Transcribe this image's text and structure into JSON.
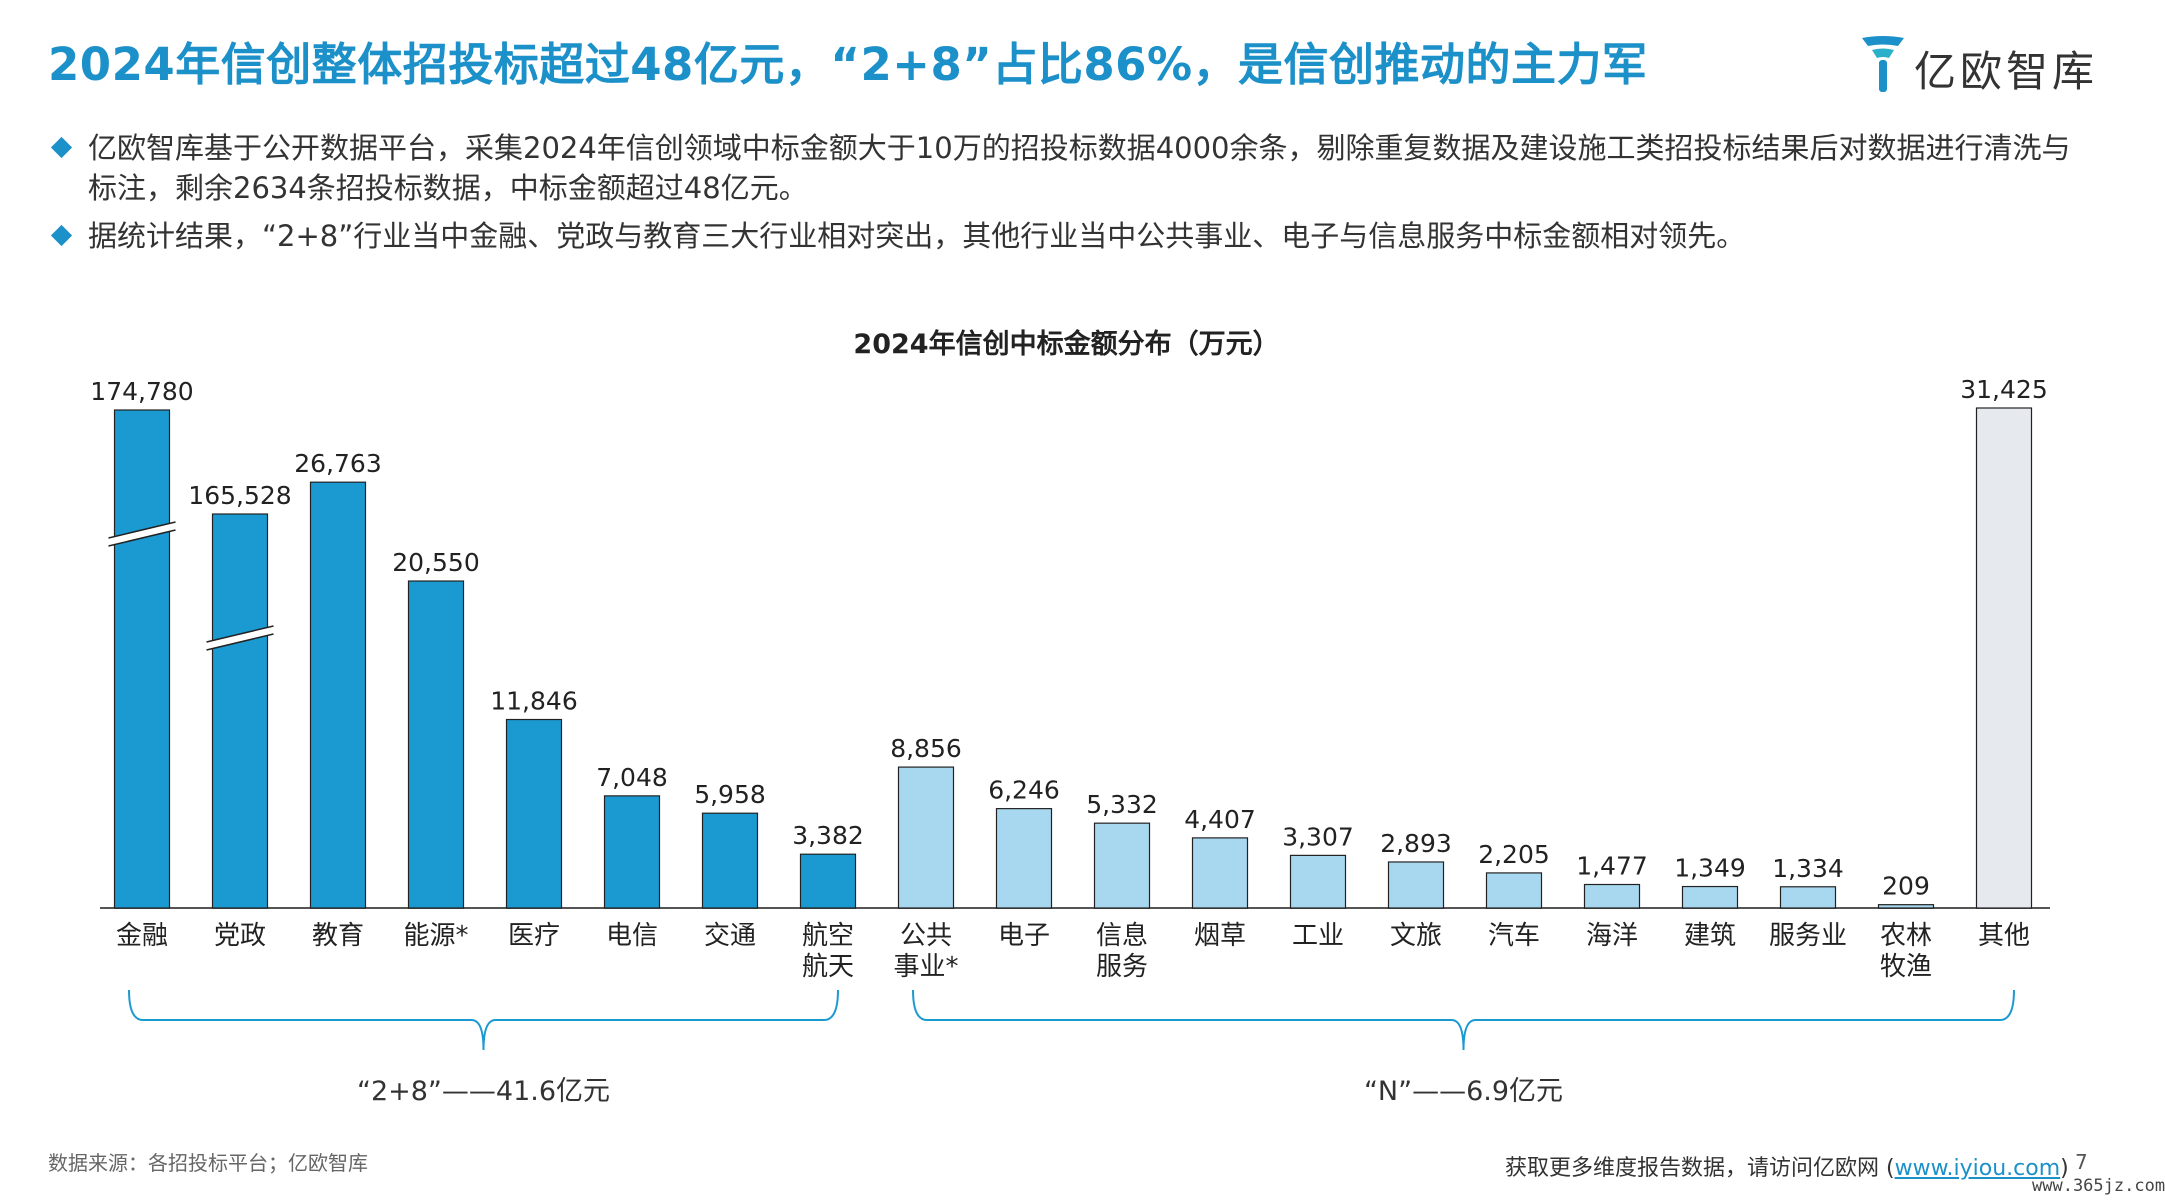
{
  "title": "2024年信创整体招投标超过48亿元，“2+8”占比86%，是信创推动的主力军",
  "logo": {
    "text": "亿欧智库"
  },
  "bullets": [
    "亿欧智库基于公开数据平台，采集2024年信创领域中标金额大于10万的招投标数据4000余条，剔除重复数据及建设施工类招投标结果后对数据进行清洗与标注，剩余2634条招投标数据，中标金额超过48亿元。",
    "据统计结果，“2+8”行业当中金融、党政与教育三大行业相对突出，其他行业当中公共事业、电子与信息服务中标金额相对领先。"
  ],
  "chart_data": {
    "type": "bar",
    "title": "2024年信创中标金额分布（万元）",
    "categories": [
      "金融",
      "党政",
      "教育",
      "能源*",
      "医疗",
      "电信",
      "交通",
      "航空\n航天",
      "公共\n事业*",
      "电子",
      "信息\n服务",
      "烟草",
      "工业",
      "文旅",
      "汽车",
      "海洋",
      "建筑",
      "服务业",
      "农林\n牧渔",
      "其他"
    ],
    "values": [
      174780,
      165528,
      26763,
      20550,
      11846,
      7048,
      5958,
      3382,
      8856,
      6246,
      5332,
      4407,
      3307,
      2893,
      2205,
      1477,
      1349,
      1334,
      209,
      31425
    ],
    "value_labels": [
      "174,780",
      "165,528",
      "26,763",
      "20,550",
      "11,846",
      "7,048",
      "5,958",
      "3,382",
      "8,856",
      "6,246",
      "5,332",
      "4,407",
      "3,307",
      "2,893",
      "2,205",
      "1,477",
      "1,349",
      "1,334",
      "209",
      "31,425"
    ],
    "groups": [
      "2+8",
      "2+8",
      "2+8",
      "2+8",
      "2+8",
      "2+8",
      "2+8",
      "2+8",
      "N",
      "N",
      "N",
      "N",
      "N",
      "N",
      "N",
      "N",
      "N",
      "N",
      "N",
      "other"
    ],
    "group_colors": {
      "2+8": "#1b9ad2",
      "N": "#a8d8ef",
      "other": "#e6e9ee"
    },
    "axis_broken_bars": [
      "金融",
      "党政"
    ],
    "brackets": [
      {
        "label": "“2+8”——41.6亿元",
        "from": "金融",
        "to": "航空\n航天"
      },
      {
        "label": "“N”——6.9亿元",
        "from": "公共\n事业*",
        "to": "其他"
      }
    ]
  },
  "footer": {
    "source": "数据来源：各招投标平台；亿欧智库",
    "more_prefix": "获取更多维度报告数据，请访问亿欧网 (",
    "more_link": "www.iyiou.com",
    "more_suffix": ")",
    "page": "7",
    "watermark": "www.365jz.com"
  }
}
